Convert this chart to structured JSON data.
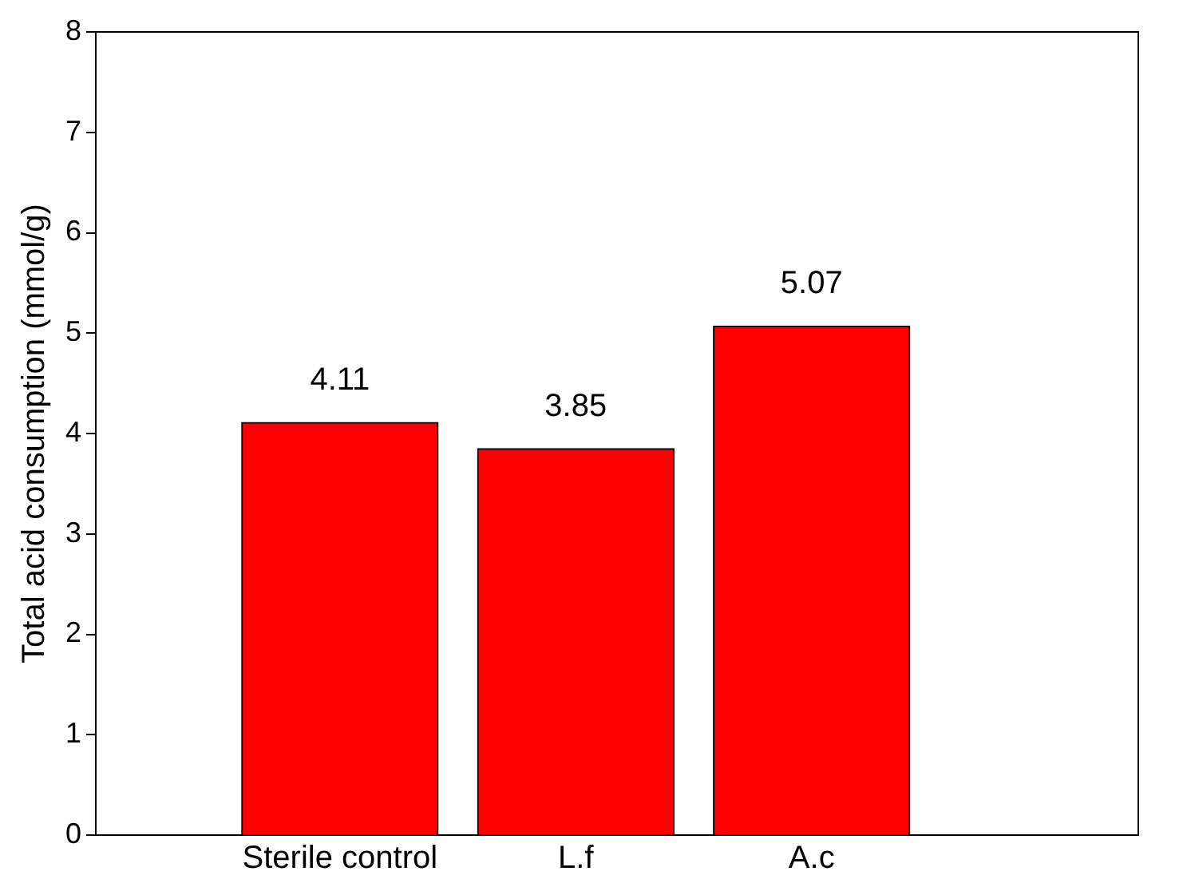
{
  "chart_data": {
    "type": "bar",
    "ylabel": "Total acid consumption (mmol/g)",
    "categories": [
      "Sterile control",
      "L.f",
      "A.c"
    ],
    "values": [
      4.11,
      3.85,
      5.07
    ],
    "color": "#ff0000",
    "ylim": [
      0,
      8
    ],
    "yticks": [
      0,
      1,
      2,
      3,
      4,
      5,
      6,
      7,
      8
    ],
    "grid": false,
    "legend": false,
    "data_labels": true
  }
}
